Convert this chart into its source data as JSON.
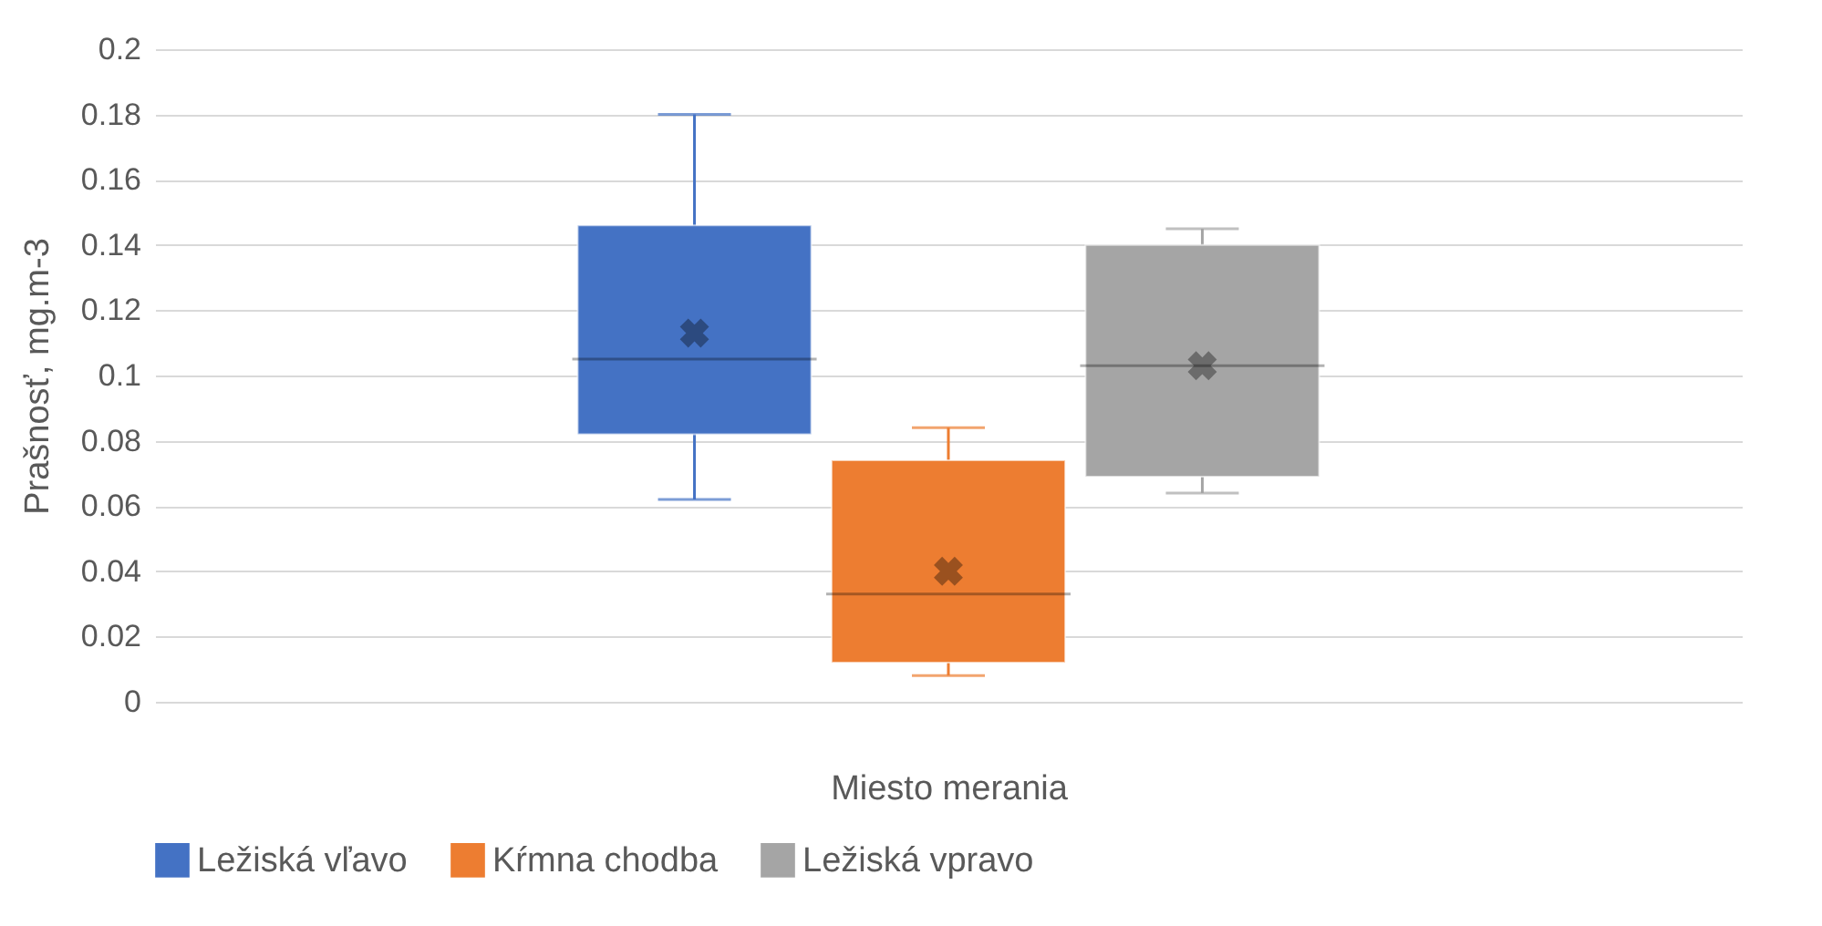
{
  "chart_data": {
    "type": "box",
    "xlabel": "Miesto merania",
    "ylabel": "Prašnosť, mg.m-3",
    "categories": [
      null
    ],
    "series": [
      {
        "name": "Ležiská vľavo",
        "color": "#4472c4",
        "boxes": [
          {
            "low": 0.062,
            "q1": 0.082,
            "median": 0.105,
            "q3": 0.146,
            "high": 0.18,
            "mean": 0.113
          }
        ]
      },
      {
        "name": "Kŕmna chodba",
        "color": "#ed7d31",
        "boxes": [
          {
            "low": 0.008,
            "q1": 0.012,
            "median": 0.033,
            "q3": 0.074,
            "high": 0.084,
            "mean": 0.04
          }
        ]
      },
      {
        "name": "Ležiská vpravo",
        "color": "#a5a5a5",
        "boxes": [
          {
            "low": 0.064,
            "q1": 0.069,
            "median": 0.103,
            "q3": 0.14,
            "high": 0.145,
            "mean": 0.103
          }
        ]
      }
    ],
    "ylim": [
      0,
      0.2
    ],
    "yticks": [
      0,
      0.02,
      0.04,
      0.06,
      0.08,
      0.1,
      0.12,
      0.14,
      0.16,
      0.18,
      0.2
    ],
    "grid": "y",
    "legend": "bottom"
  }
}
